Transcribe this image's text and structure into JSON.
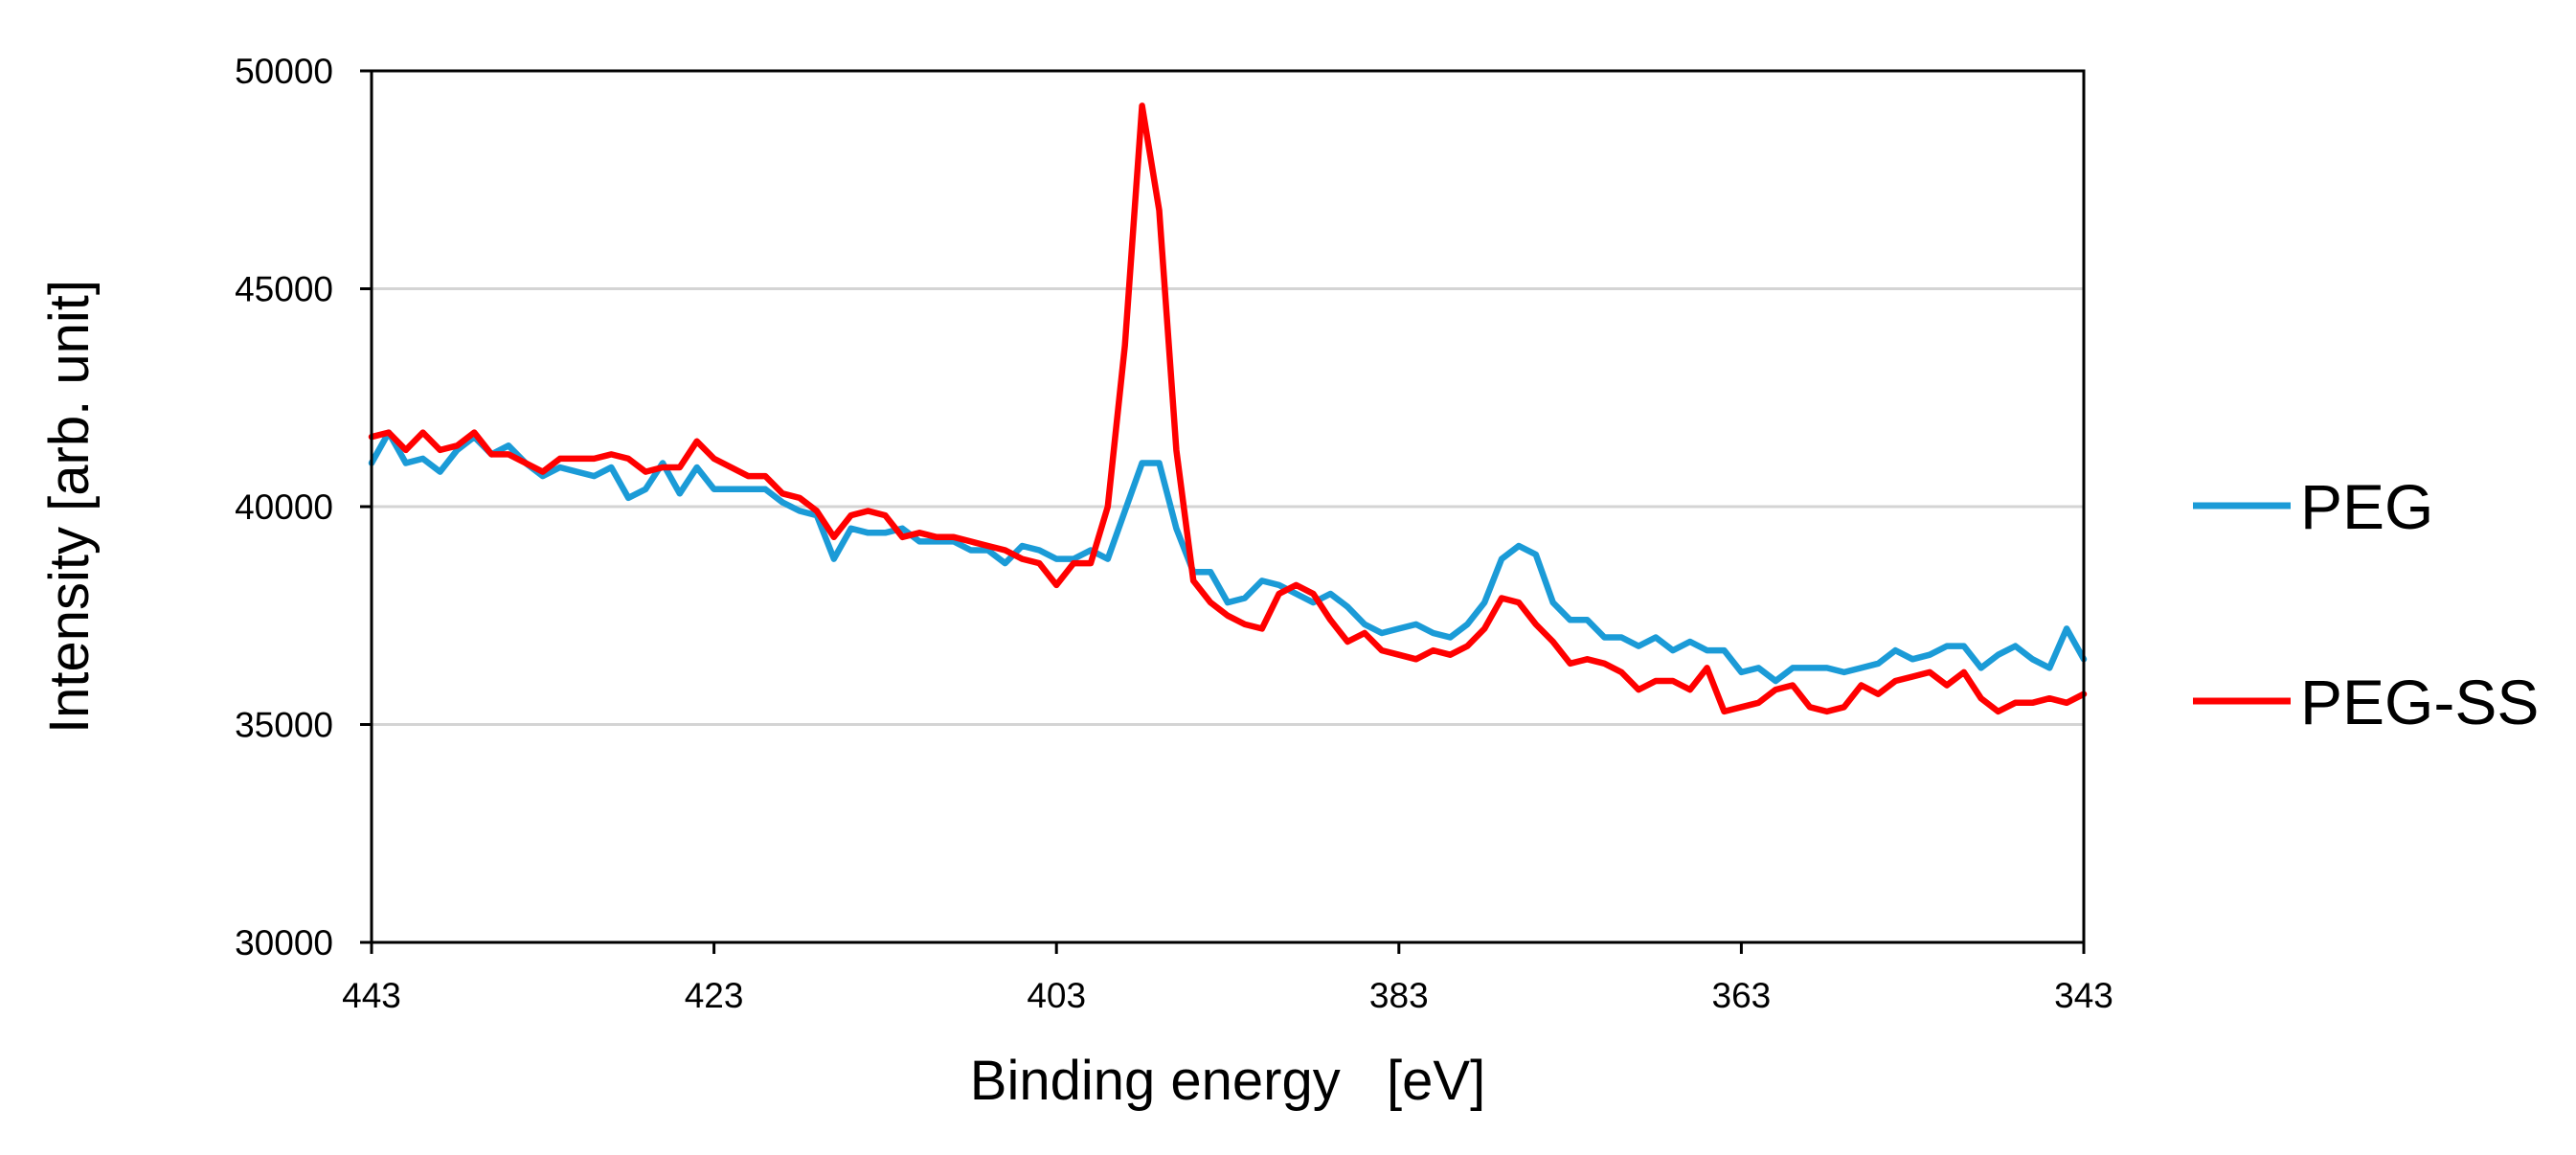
{
  "chart_data": {
    "type": "line",
    "title": "",
    "xlabel": "Binding energy   [eV]",
    "ylabel": "Intensity [arb. unit]",
    "xlim": [
      443,
      343
    ],
    "ylim": [
      30000,
      50000
    ],
    "x_reversed": true,
    "x_ticks": [
      443,
      423,
      403,
      383,
      363,
      343
    ],
    "y_ticks": [
      30000,
      35000,
      40000,
      45000,
      50000
    ],
    "x_tick_labels": [
      "443",
      "423",
      "403",
      "383",
      "363",
      "343"
    ],
    "y_tick_labels": [
      "30000",
      "35000",
      "40000",
      "45000",
      "50000"
    ],
    "grid": "horizontal",
    "legend_position": "right",
    "series": [
      {
        "name": "PEG",
        "color": "#1b9bd7",
        "x": [
          443,
          442,
          441,
          440,
          439,
          438,
          437,
          436,
          435,
          434,
          433,
          432,
          431,
          430,
          429,
          428,
          427,
          426,
          425,
          424,
          423,
          422,
          421,
          420,
          419,
          418,
          417,
          416,
          415,
          414,
          413,
          412,
          411,
          410,
          409,
          408,
          407,
          406,
          405,
          404,
          403,
          402,
          401,
          400,
          399,
          398,
          397,
          396,
          395,
          394,
          393,
          392,
          391,
          390,
          389,
          388,
          387,
          386,
          385,
          384,
          383,
          382,
          381,
          380,
          379,
          378,
          377,
          376,
          375,
          374,
          373,
          372,
          371,
          370,
          369,
          368,
          367,
          366,
          365,
          364,
          363,
          362,
          361,
          360,
          359,
          358,
          357,
          356,
          355,
          354,
          353,
          352,
          351,
          350,
          349,
          348,
          347,
          346,
          345,
          344,
          343
        ],
        "y": [
          41000,
          41700,
          41000,
          41100,
          40800,
          41300,
          41600,
          41200,
          41400,
          41000,
          40700,
          40900,
          40800,
          40700,
          40900,
          40200,
          40400,
          41000,
          40300,
          40900,
          40400,
          40400,
          40400,
          40400,
          40100,
          39900,
          39800,
          38800,
          39500,
          39400,
          39400,
          39500,
          39200,
          39200,
          39200,
          39000,
          39000,
          38700,
          39100,
          39000,
          38800,
          38800,
          39000,
          38800,
          39900,
          41000,
          41000,
          39500,
          38500,
          38500,
          37800,
          37900,
          38300,
          38200,
          38000,
          37800,
          38000,
          37700,
          37300,
          37100,
          37200,
          37300,
          37100,
          37000,
          37300,
          37800,
          38800,
          39100,
          38900,
          37800,
          37400,
          37400,
          37000,
          37000,
          36800,
          37000,
          36700,
          36900,
          36700,
          36700,
          36200,
          36300,
          36000,
          36300,
          36300,
          36300,
          36200,
          36300,
          36400,
          36700,
          36500,
          36600,
          36800,
          36800,
          36300,
          36600,
          36800,
          36500,
          36300,
          37200,
          36500
        ]
      },
      {
        "name": "PEG-SS",
        "color": "#ff0000",
        "x": [
          443,
          442,
          441,
          440,
          439,
          438,
          437,
          436,
          435,
          434,
          433,
          432,
          431,
          430,
          429,
          428,
          427,
          426,
          425,
          424,
          423,
          422,
          421,
          420,
          419,
          418,
          417,
          416,
          415,
          414,
          413,
          412,
          411,
          410,
          409,
          408,
          407,
          406,
          405,
          404,
          403,
          402,
          401,
          400,
          399,
          398,
          397,
          396,
          395,
          394,
          393,
          392,
          391,
          390,
          389,
          388,
          387,
          386,
          385,
          384,
          383,
          382,
          381,
          380,
          379,
          378,
          377,
          376,
          375,
          374,
          373,
          372,
          371,
          370,
          369,
          368,
          367,
          366,
          365,
          364,
          363,
          362,
          361,
          360,
          359,
          358,
          357,
          356,
          355,
          354,
          353,
          352,
          351,
          350,
          349,
          348,
          347,
          346,
          345,
          344,
          343
        ],
        "y": [
          41600,
          41700,
          41300,
          41700,
          41300,
          41400,
          41700,
          41200,
          41200,
          41000,
          40800,
          41100,
          41100,
          41100,
          41200,
          41100,
          40800,
          40900,
          40900,
          41500,
          41100,
          40900,
          40700,
          40700,
          40300,
          40200,
          39900,
          39300,
          39800,
          39900,
          39800,
          39300,
          39400,
          39300,
          39300,
          39200,
          39100,
          39000,
          38800,
          38700,
          38200,
          38700,
          38700,
          40000,
          43700,
          49200,
          46800,
          41300,
          38300,
          37800,
          37500,
          37300,
          37200,
          38000,
          38200,
          38000,
          37400,
          36900,
          37100,
          36700,
          36600,
          36500,
          36700,
          36600,
          36800,
          37200,
          37900,
          37800,
          37300,
          36900,
          36400,
          36500,
          36400,
          36200,
          35800,
          36000,
          36000,
          35800,
          36300,
          35300,
          35400,
          35500,
          35800,
          35900,
          35400,
          35300,
          35400,
          35900,
          35700,
          36000,
          36100,
          36200,
          35900,
          36200,
          35600,
          35300,
          35500,
          35500,
          35600,
          35500,
          35700
        ]
      }
    ]
  }
}
